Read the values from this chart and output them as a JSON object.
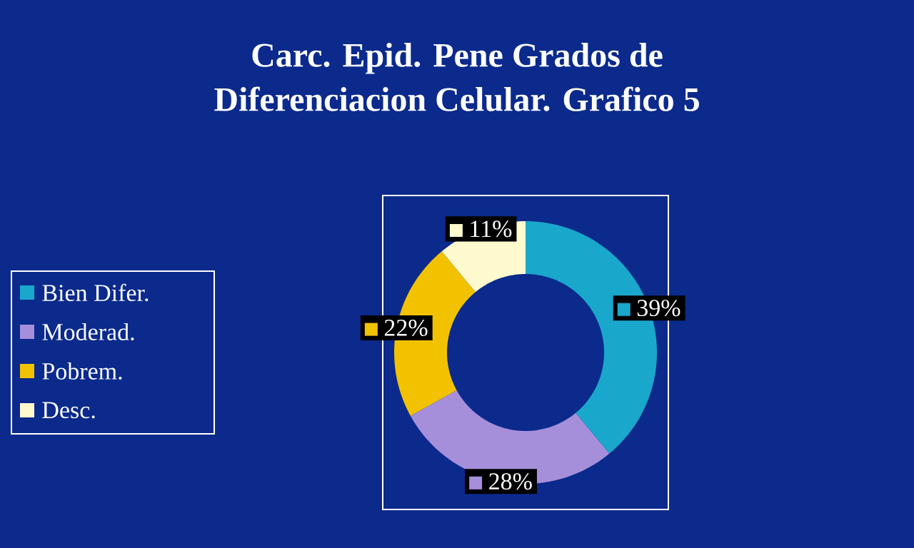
{
  "chart_data": {
    "type": "donut",
    "title": "Carc. Epid. Pene Grados de Diferenciacion Celular.  Grafico 5",
    "categories": [
      "Bien Difer.",
      "Moderad.",
      "Pobrem.",
      "Desc."
    ],
    "values": [
      39,
      28,
      22,
      11
    ],
    "colors": [
      "#1aa7cc",
      "#a58fdb",
      "#f2c200",
      "#fffacd"
    ],
    "value_labels": [
      "39%",
      "28%",
      "22%",
      "11%"
    ],
    "legend": "left"
  }
}
